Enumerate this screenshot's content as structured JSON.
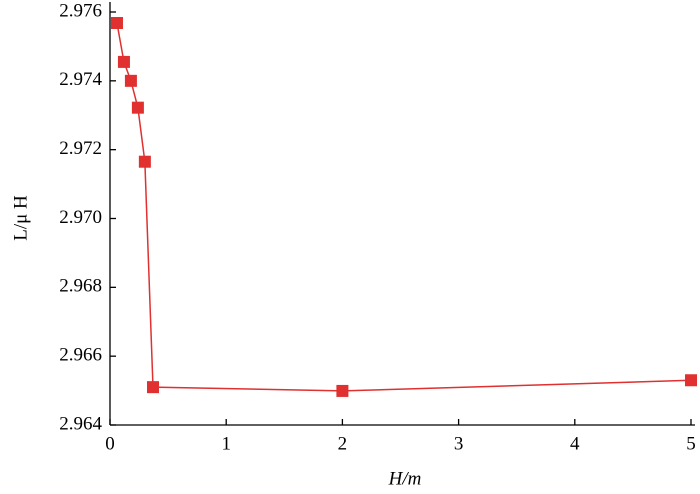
{
  "chart_data": {
    "type": "line",
    "x_label": "H/m",
    "y_label": "L/μ H",
    "x": [
      0.06,
      0.12,
      0.18,
      0.24,
      0.3,
      0.37,
      2,
      5
    ],
    "series": [
      {
        "name": "L",
        "color": "#e03030",
        "values": [
          2.97568,
          2.97455,
          2.974,
          2.97322,
          2.97165,
          2.9651,
          2.96499,
          2.9653
        ]
      }
    ],
    "xlim": [
      0,
      5
    ],
    "xticks": [
      0,
      1,
      2,
      3,
      4,
      5
    ],
    "ylim": [
      2.964,
      2.976
    ],
    "yticks": [
      2.964,
      2.966,
      2.968,
      {
        "value": 2.97,
        "label": "2.970"
      },
      2.972,
      2.974,
      2.976
    ]
  }
}
